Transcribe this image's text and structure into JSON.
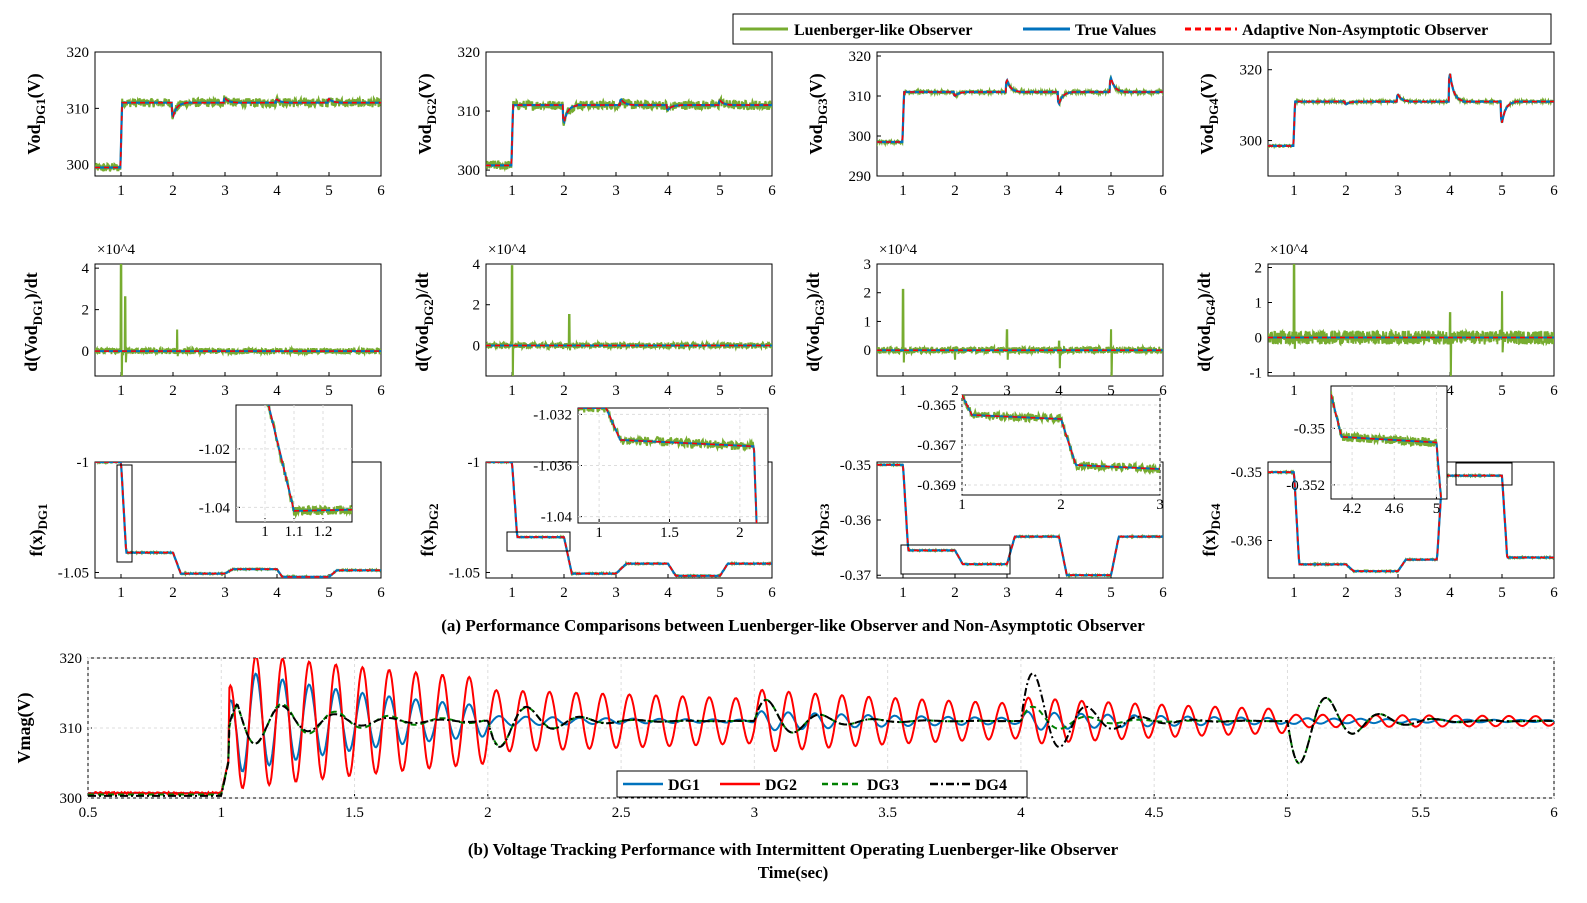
{
  "colors": {
    "luenberger": "#77ac30",
    "true_values": "#0072bd",
    "adaptive": "#ff0000",
    "dg1": "#0072bd",
    "dg2": "#ff0000",
    "dg3": "#008000",
    "dg4": "#000000"
  },
  "legend_top": [
    "Luenberger-like Observer",
    "True Values",
    "Adaptive Non-Asymptotic Observer"
  ],
  "legend_bottom": [
    "DG1",
    "DG2",
    "DG3",
    "DG4"
  ],
  "captions": {
    "a": "(a) Performance Comparisons between Luenberger-like Observer  and Non-Asymptotic Observer",
    "b": "(b) Voltage Tracking Performance with Intermittent Operating Luenberger-like Observer",
    "time": "Time(sec)"
  },
  "exponent_label": "×10^4",
  "chart_data": [
    {
      "id": "vod1",
      "type": "line",
      "ylabel_main": "Vod",
      "ylabel_sub": "DG1",
      "ylabel_suffix": "(V)",
      "xlim": [
        0.5,
        6
      ],
      "ylim": [
        298,
        320
      ],
      "yticks": [
        "300",
        "310",
        "320"
      ],
      "ytick_values": [
        300,
        310,
        320
      ],
      "xticks": [
        "1",
        "2",
        "3",
        "4",
        "5",
        "6"
      ],
      "levels": [
        [
          0.5,
          299.5
        ],
        [
          1,
          311
        ]
      ],
      "bumps": [
        [
          2,
          -2.5
        ],
        [
          3,
          0.8
        ],
        [
          4,
          0.6
        ],
        [
          5,
          0.7
        ]
      ],
      "noise": 1.0
    },
    {
      "id": "vod2",
      "type": "line",
      "ylabel_main": "Vod",
      "ylabel_sub": "DG2",
      "ylabel_suffix": "(V)",
      "xlim": [
        0.5,
        6
      ],
      "ylim": [
        299,
        320
      ],
      "yticks": [
        "300",
        "310",
        "320"
      ],
      "ytick_values": [
        300,
        310,
        320
      ],
      "xticks": [
        "1",
        "2",
        "3",
        "4",
        "5",
        "6"
      ],
      "levels": [
        [
          0.5,
          300.8
        ],
        [
          1,
          311
        ]
      ],
      "bumps": [
        [
          2,
          -3
        ],
        [
          3.1,
          1
        ],
        [
          4,
          -0.8
        ],
        [
          5,
          0.8
        ]
      ],
      "noise": 1.0
    },
    {
      "id": "vod3",
      "type": "line",
      "ylabel_main": "Vod",
      "ylabel_sub": "DG3",
      "ylabel_suffix": "(V)",
      "xlim": [
        0.5,
        6
      ],
      "ylim": [
        290,
        321
      ],
      "yticks": [
        "290",
        "300",
        "310",
        "320"
      ],
      "ytick_values": [
        290,
        300,
        310,
        320
      ],
      "xticks": [
        "1",
        "2",
        "3",
        "4",
        "5",
        "6"
      ],
      "levels": [
        [
          0.5,
          298.5
        ],
        [
          1,
          311
        ]
      ],
      "bumps": [
        [
          2,
          -1
        ],
        [
          3,
          3
        ],
        [
          4,
          -3
        ],
        [
          5,
          3.5
        ]
      ],
      "noise": 0.5
    },
    {
      "id": "vod4",
      "type": "line",
      "ylabel_main": "Vod",
      "ylabel_sub": "DG4",
      "ylabel_suffix": "(V)",
      "xlim": [
        0.5,
        6
      ],
      "ylim": [
        290,
        325
      ],
      "yticks": [
        "300",
        "320"
      ],
      "ytick_values": [
        300,
        320
      ],
      "xticks": [
        "1",
        "2",
        "3",
        "4",
        "5",
        "6"
      ],
      "levels": [
        [
          0.5,
          298.5
        ],
        [
          1,
          311
        ]
      ],
      "bumps": [
        [
          2,
          -0.8
        ],
        [
          3,
          2
        ],
        [
          4,
          8
        ],
        [
          5,
          -6
        ]
      ],
      "noise": 0.4
    },
    {
      "id": "d1",
      "type": "line",
      "ylabel": "d(Vod",
      "ylabel_sub": "DG1",
      "ylabel_suffix": ")/dt",
      "xlim": [
        0.5,
        6
      ],
      "ylim": [
        -1.2,
        4.2
      ],
      "yticks": [
        "0",
        "2",
        "4"
      ],
      "ytick_values": [
        0,
        2,
        4
      ],
      "xticks": [
        "1",
        "2",
        "3",
        "4",
        "5",
        "6"
      ],
      "spikes": [
        [
          1,
          4.3,
          -1.3
        ],
        [
          1.08,
          2.6,
          -0.5
        ],
        [
          2.08,
          1.0,
          -0.2
        ]
      ],
      "noise": 0.15
    },
    {
      "id": "d2",
      "type": "line",
      "ylabel": "d(Vod",
      "ylabel_sub": "DG2",
      "ylabel_suffix": ")/dt",
      "xlim": [
        0.5,
        6
      ],
      "ylim": [
        -1.5,
        4
      ],
      "yticks": [
        "0",
        "2",
        "4"
      ],
      "ytick_values": [
        0,
        2,
        4
      ],
      "xticks": [
        "1",
        "2",
        "3",
        "4",
        "5",
        "6"
      ],
      "spikes": [
        [
          1,
          3.9,
          -1.5
        ],
        [
          2.1,
          1.5,
          -0.2
        ]
      ],
      "noise": 0.15
    },
    {
      "id": "d3",
      "type": "line",
      "ylabel": "d(Vod",
      "ylabel_sub": "DG3",
      "ylabel_suffix": ")/dt",
      "xlim": [
        0.5,
        6
      ],
      "ylim": [
        -0.9,
        3
      ],
      "yticks": [
        "0",
        "1",
        "2",
        "3"
      ],
      "ytick_values": [
        0,
        1,
        2,
        3
      ],
      "xticks": [
        "1",
        "2",
        "3",
        "4",
        "5",
        "6"
      ],
      "spikes": [
        [
          1,
          2.1,
          -0.4
        ],
        [
          2,
          -0.3,
          0.1
        ],
        [
          3,
          0.7,
          -0.3
        ],
        [
          4,
          0.3,
          -0.6
        ],
        [
          5,
          0.7,
          -0.9
        ]
      ],
      "noise": 0.12
    },
    {
      "id": "d4",
      "type": "line",
      "ylabel": "d(Vod",
      "ylabel_sub": "DG4",
      "ylabel_suffix": ")/dt",
      "xlim": [
        0.5,
        6
      ],
      "ylim": [
        -1.1,
        2.1
      ],
      "yticks": [
        "-1",
        "0",
        "1",
        "2"
      ],
      "ytick_values": [
        -1,
        0,
        1,
        2
      ],
      "xticks": [
        "1",
        "2",
        "3",
        "4",
        "5",
        "6"
      ],
      "spikes": [
        [
          1,
          2.1,
          -0.3
        ],
        [
          4,
          0.7,
          -1.1
        ],
        [
          5,
          1.3,
          -0.4
        ]
      ],
      "noise": 0.2
    },
    {
      "id": "f1",
      "type": "line",
      "ylabel": "f(x)",
      "ylabel_sub": "DG1",
      "xlim": [
        0.5,
        6
      ],
      "ylim": [
        -1.0525,
        -1.0
      ],
      "yticks": [
        "-1",
        "-1.05"
      ],
      "ytick_values": [
        -1,
        -1.05
      ],
      "xticks": [
        "1",
        "2",
        "3",
        "4",
        "5",
        "6"
      ],
      "levels": [
        [
          0.5,
          -1.0
        ],
        [
          1,
          -1.0
        ],
        [
          1.1,
          -1.041
        ],
        [
          2,
          -1.041
        ],
        [
          2.15,
          -1.0505
        ],
        [
          3,
          -1.0505
        ],
        [
          3.15,
          -1.0485
        ],
        [
          4,
          -1.0485
        ],
        [
          4.1,
          -1.052
        ],
        [
          5,
          -1.052
        ],
        [
          5.15,
          -1.049
        ],
        [
          6,
          -1.049
        ]
      ],
      "inset": {
        "xlim": [
          0.9,
          1.3
        ],
        "ylim": [
          -1.045,
          -1.005
        ],
        "yticks": [
          "-1.02",
          "-1.04"
        ],
        "ytick_values": [
          -1.02,
          -1.04
        ],
        "xticks": [
          "1",
          "1.1",
          "1.2"
        ],
        "xtick_values": [
          1,
          1.1,
          1.2
        ],
        "levels": [
          [
            0.9,
            -1.0
          ],
          [
            1,
            -1.0
          ],
          [
            1.1,
            -1.0412
          ],
          [
            1.3,
            -1.0408
          ]
        ]
      }
    },
    {
      "id": "f2",
      "type": "line",
      "ylabel": "f(x)",
      "ylabel_sub": "DG2",
      "xlim": [
        0.5,
        6
      ],
      "ylim": [
        -1.0525,
        -1.0
      ],
      "yticks": [
        "-1",
        "-1.05"
      ],
      "ytick_values": [
        -1,
        -1.05
      ],
      "xticks": [
        "1",
        "2",
        "3",
        "4",
        "5",
        "6"
      ],
      "levels": [
        [
          0.5,
          -1.0
        ],
        [
          1,
          -1.0
        ],
        [
          1.1,
          -1.034
        ],
        [
          2,
          -1.034
        ],
        [
          2.15,
          -1.0505
        ],
        [
          3,
          -1.0505
        ],
        [
          3.2,
          -1.046
        ],
        [
          4,
          -1.046
        ],
        [
          4.15,
          -1.0515
        ],
        [
          5,
          -1.0515
        ],
        [
          5.15,
          -1.046
        ],
        [
          6,
          -1.046
        ]
      ],
      "inset": {
        "xlim": [
          0.85,
          2.2
        ],
        "ylim": [
          -1.0405,
          -1.0315
        ],
        "yticks": [
          "-1.032",
          "-1.036",
          "-1.04"
        ],
        "ytick_values": [
          -1.032,
          -1.036,
          -1.04
        ],
        "xticks": [
          "1",
          "1.5",
          "2"
        ],
        "xtick_values": [
          1,
          1.5,
          2
        ],
        "levels": [
          [
            0.85,
            -1.0315
          ],
          [
            1.05,
            -1.0315
          ],
          [
            1.15,
            -1.034
          ],
          [
            2.1,
            -1.0345
          ],
          [
            2.12,
            -1.041
          ]
        ]
      }
    },
    {
      "id": "f3",
      "type": "line",
      "ylabel": "f(x)",
      "ylabel_sub": "DG3",
      "xlim": [
        0.5,
        6
      ],
      "ylim": [
        -0.3705,
        -0.3495
      ],
      "yticks": [
        "-0.35",
        "-0.36",
        "-0.37"
      ],
      "ytick_values": [
        -0.35,
        -0.36,
        -0.37
      ],
      "xticks": [
        "1",
        "2",
        "3",
        "4",
        "5",
        "6"
      ],
      "levels": [
        [
          0.5,
          -0.35
        ],
        [
          1,
          -0.35
        ],
        [
          1.1,
          -0.3655
        ],
        [
          2,
          -0.3655
        ],
        [
          2.15,
          -0.368
        ],
        [
          3,
          -0.368
        ],
        [
          3.15,
          -0.363
        ],
        [
          4,
          -0.363
        ],
        [
          4.15,
          -0.37
        ],
        [
          5,
          -0.37
        ],
        [
          5.15,
          -0.363
        ],
        [
          6,
          -0.363
        ]
      ],
      "inset": {
        "xlim": [
          1,
          3
        ],
        "ylim": [
          -0.3695,
          -0.3645
        ],
        "yticks": [
          "-0.365",
          "-0.367",
          "-0.369"
        ],
        "ytick_values": [
          -0.365,
          -0.367,
          -0.369
        ],
        "xticks": [
          "1",
          "2",
          "3"
        ],
        "xtick_values": [
          1,
          2,
          3
        ],
        "levels": [
          [
            1,
            -0.3645
          ],
          [
            1.1,
            -0.3655
          ],
          [
            2,
            -0.3657
          ],
          [
            2.15,
            -0.368
          ],
          [
            3,
            -0.3682
          ]
        ]
      }
    },
    {
      "id": "f4",
      "type": "line",
      "ylabel": "f(x)",
      "ylabel_sub": "DG4",
      "xlim": [
        0.5,
        6
      ],
      "ylim": [
        -0.3655,
        -0.3485
      ],
      "yticks": [
        "-0.35",
        "-0.36"
      ],
      "ytick_values": [
        -0.35,
        -0.36
      ],
      "xticks": [
        "1",
        "2",
        "3",
        "4",
        "5",
        "6"
      ],
      "levels": [
        [
          0.5,
          -0.35
        ],
        [
          1,
          -0.35
        ],
        [
          1.1,
          -0.3635
        ],
        [
          2,
          -0.3635
        ],
        [
          2.15,
          -0.3645
        ],
        [
          3,
          -0.3645
        ],
        [
          3.15,
          -0.3628
        ],
        [
          3.75,
          -0.3628
        ],
        [
          3.85,
          -0.3505
        ],
        [
          5,
          -0.3505
        ],
        [
          5.1,
          -0.3625
        ],
        [
          6,
          -0.3625
        ]
      ],
      "inset": {
        "xlim": [
          4,
          5.1
        ],
        "ylim": [
          -0.3525,
          -0.3485
        ],
        "yticks": [
          "-0.35",
          "-0.352"
        ],
        "ytick_values": [
          -0.35,
          -0.352
        ],
        "xticks": [
          "4.2",
          "4.6",
          "5"
        ],
        "xtick_values": [
          4.2,
          4.6,
          5
        ],
        "levels": [
          [
            4,
            -0.3488
          ],
          [
            4.1,
            -0.3503
          ],
          [
            5,
            -0.3505
          ],
          [
            5.05,
            -0.3528
          ]
        ]
      }
    },
    {
      "id": "vmag",
      "type": "line",
      "ylabel": "Vmag(V)",
      "xlim": [
        0.5,
        6
      ],
      "ylim": [
        300,
        320
      ],
      "yticks": [
        "300",
        "310",
        "320"
      ],
      "ytick_values": [
        300,
        310,
        320
      ],
      "xticks": [
        "0.5",
        "1",
        "1.5",
        "2",
        "2.5",
        "3",
        "3.5",
        "4",
        "4.5",
        "5",
        "5.5",
        "6"
      ],
      "xtick_values": [
        0.5,
        1,
        1.5,
        2,
        2.5,
        3,
        3.5,
        4,
        4.5,
        5,
        5.5,
        6
      ],
      "series": [
        {
          "name": "DG1",
          "pre": 300.7,
          "level": 311,
          "amp": 8,
          "decay": 1.3,
          "freq": 10
        },
        {
          "name": "DG2",
          "pre": 300.7,
          "level": 311,
          "amp": 10,
          "decay": 0.5,
          "freq": 10
        },
        {
          "name": "DG3",
          "pre": 300.5,
          "level": 311,
          "amp": 8,
          "decay": 3,
          "freq": 5
        },
        {
          "name": "DG4",
          "pre": 300.3,
          "level": 311,
          "amp": 9,
          "decay": 4,
          "freq": 5
        }
      ]
    }
  ]
}
